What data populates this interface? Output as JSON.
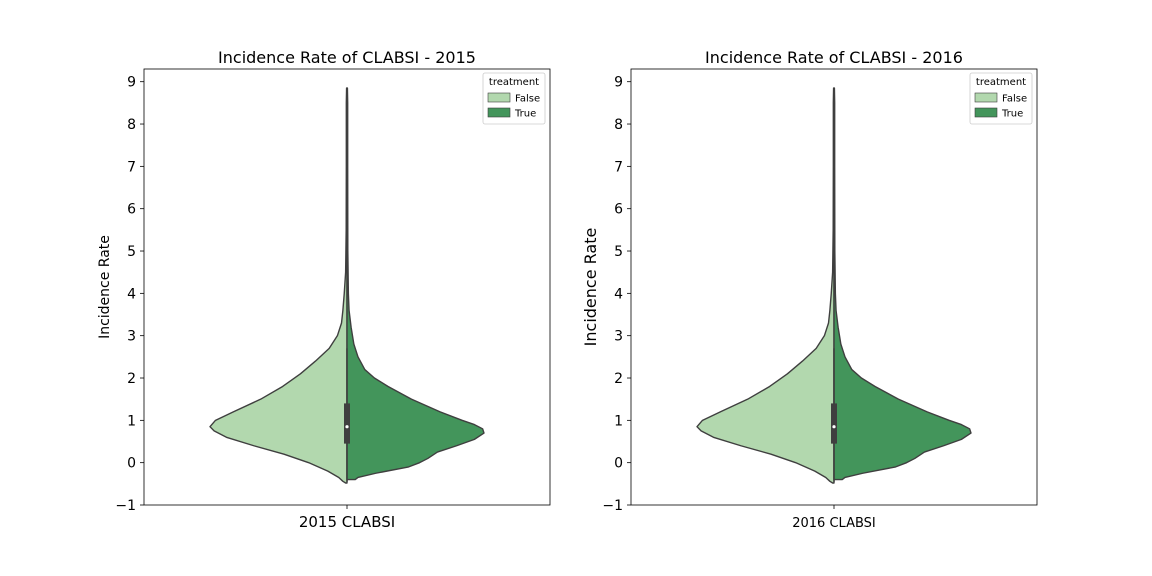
{
  "chart_data": [
    {
      "type": "violin",
      "title": "Incidence Rate of CLABSI - 2015",
      "xlabel": "2015 CLABSI",
      "ylabel": "Incidence Rate",
      "ylim": [
        -1,
        9.3
      ],
      "yticks": [
        "−1",
        "0",
        "1",
        "2",
        "3",
        "4",
        "5",
        "6",
        "7",
        "8",
        "9"
      ],
      "legend": {
        "title": "treatment",
        "placement": "top-right",
        "entries": [
          {
            "label": "False",
            "color": "#b2d8ae"
          },
          {
            "label": "True",
            "color": "#43955b"
          }
        ]
      },
      "series": [
        {
          "name": "False",
          "side": "left",
          "color": "#b2d8ae",
          "density": [
            [
              -0.48,
              0.01
            ],
            [
              -0.44,
              0.03
            ],
            [
              -0.35,
              0.06
            ],
            [
              -0.2,
              0.14
            ],
            [
              0.0,
              0.28
            ],
            [
              0.2,
              0.46
            ],
            [
              0.4,
              0.68
            ],
            [
              0.6,
              0.88
            ],
            [
              0.75,
              0.97
            ],
            [
              0.85,
              1.0
            ],
            [
              1.0,
              0.96
            ],
            [
              1.2,
              0.83
            ],
            [
              1.5,
              0.63
            ],
            [
              1.8,
              0.47
            ],
            [
              2.1,
              0.34
            ],
            [
              2.4,
              0.23
            ],
            [
              2.7,
              0.13
            ],
            [
              3.0,
              0.07
            ],
            [
              3.3,
              0.04
            ],
            [
              3.6,
              0.03
            ],
            [
              4.0,
              0.02
            ],
            [
              4.5,
              0.01
            ],
            [
              5.5,
              0.006
            ],
            [
              7.0,
              0.005
            ],
            [
              8.5,
              0.005
            ],
            [
              8.85,
              0.003
            ]
          ]
        },
        {
          "name": "True",
          "side": "right",
          "color": "#43955b",
          "density": [
            [
              -0.4,
              0.06
            ],
            [
              -0.35,
              0.08
            ],
            [
              -0.25,
              0.21
            ],
            [
              -0.1,
              0.45
            ],
            [
              0.0,
              0.53
            ],
            [
              0.1,
              0.59
            ],
            [
              0.25,
              0.66
            ],
            [
              0.4,
              0.8
            ],
            [
              0.55,
              0.93
            ],
            [
              0.7,
              1.0
            ],
            [
              0.8,
              0.99
            ],
            [
              0.9,
              0.93
            ],
            [
              1.0,
              0.84
            ],
            [
              1.2,
              0.68
            ],
            [
              1.5,
              0.47
            ],
            [
              1.8,
              0.3
            ],
            [
              2.0,
              0.2
            ],
            [
              2.2,
              0.13
            ],
            [
              2.5,
              0.08
            ],
            [
              2.8,
              0.05
            ],
            [
              3.2,
              0.03
            ],
            [
              3.6,
              0.015
            ],
            [
              4.0,
              0.01
            ],
            [
              5.0,
              0.006
            ],
            [
              7.0,
              0.005
            ],
            [
              8.5,
              0.005
            ],
            [
              8.85,
              0.003
            ]
          ]
        }
      ],
      "box": {
        "q1": 0.45,
        "median": 0.85,
        "q3": 1.4,
        "whisker_low": -0.45,
        "whisker_high": 2.7
      }
    },
    {
      "type": "violin",
      "title": "Incidence Rate of CLABSI - 2016",
      "xlabel": "2016 CLABSI",
      "ylabel": "Incidence Rate",
      "ylim": [
        -1,
        9.3
      ],
      "yticks": [
        "−1",
        "0",
        "1",
        "2",
        "3",
        "4",
        "5",
        "6",
        "7",
        "8",
        "9"
      ],
      "legend": {
        "title": "treatment",
        "placement": "top-right",
        "entries": [
          {
            "label": "False",
            "color": "#b2d8ae"
          },
          {
            "label": "True",
            "color": "#43955b"
          }
        ]
      },
      "series": [
        {
          "name": "False",
          "side": "left",
          "color": "#b2d8ae",
          "density": [
            [
              -0.48,
              0.01
            ],
            [
              -0.44,
              0.03
            ],
            [
              -0.35,
              0.06
            ],
            [
              -0.2,
              0.14
            ],
            [
              0.0,
              0.28
            ],
            [
              0.2,
              0.46
            ],
            [
              0.4,
              0.68
            ],
            [
              0.6,
              0.88
            ],
            [
              0.75,
              0.97
            ],
            [
              0.85,
              1.0
            ],
            [
              1.0,
              0.96
            ],
            [
              1.2,
              0.83
            ],
            [
              1.5,
              0.63
            ],
            [
              1.8,
              0.47
            ],
            [
              2.1,
              0.34
            ],
            [
              2.4,
              0.23
            ],
            [
              2.7,
              0.13
            ],
            [
              3.0,
              0.07
            ],
            [
              3.3,
              0.04
            ],
            [
              3.6,
              0.03
            ],
            [
              4.0,
              0.02
            ],
            [
              4.5,
              0.01
            ],
            [
              5.5,
              0.006
            ],
            [
              7.0,
              0.005
            ],
            [
              8.5,
              0.005
            ],
            [
              8.85,
              0.003
            ]
          ]
        },
        {
          "name": "True",
          "side": "right",
          "color": "#43955b",
          "density": [
            [
              -0.4,
              0.06
            ],
            [
              -0.35,
              0.08
            ],
            [
              -0.25,
              0.21
            ],
            [
              -0.1,
              0.45
            ],
            [
              0.0,
              0.53
            ],
            [
              0.1,
              0.59
            ],
            [
              0.25,
              0.66
            ],
            [
              0.4,
              0.8
            ],
            [
              0.55,
              0.93
            ],
            [
              0.7,
              1.0
            ],
            [
              0.8,
              0.99
            ],
            [
              0.9,
              0.93
            ],
            [
              1.0,
              0.84
            ],
            [
              1.2,
              0.68
            ],
            [
              1.5,
              0.47
            ],
            [
              1.8,
              0.3
            ],
            [
              2.0,
              0.2
            ],
            [
              2.2,
              0.13
            ],
            [
              2.5,
              0.08
            ],
            [
              2.8,
              0.05
            ],
            [
              3.2,
              0.03
            ],
            [
              3.6,
              0.015
            ],
            [
              4.0,
              0.01
            ],
            [
              5.0,
              0.006
            ],
            [
              7.0,
              0.005
            ],
            [
              8.5,
              0.005
            ],
            [
              8.85,
              0.003
            ]
          ]
        }
      ],
      "box": {
        "q1": 0.45,
        "median": 0.85,
        "q3": 1.4,
        "whisker_low": -0.45,
        "whisker_high": 2.7
      }
    }
  ]
}
